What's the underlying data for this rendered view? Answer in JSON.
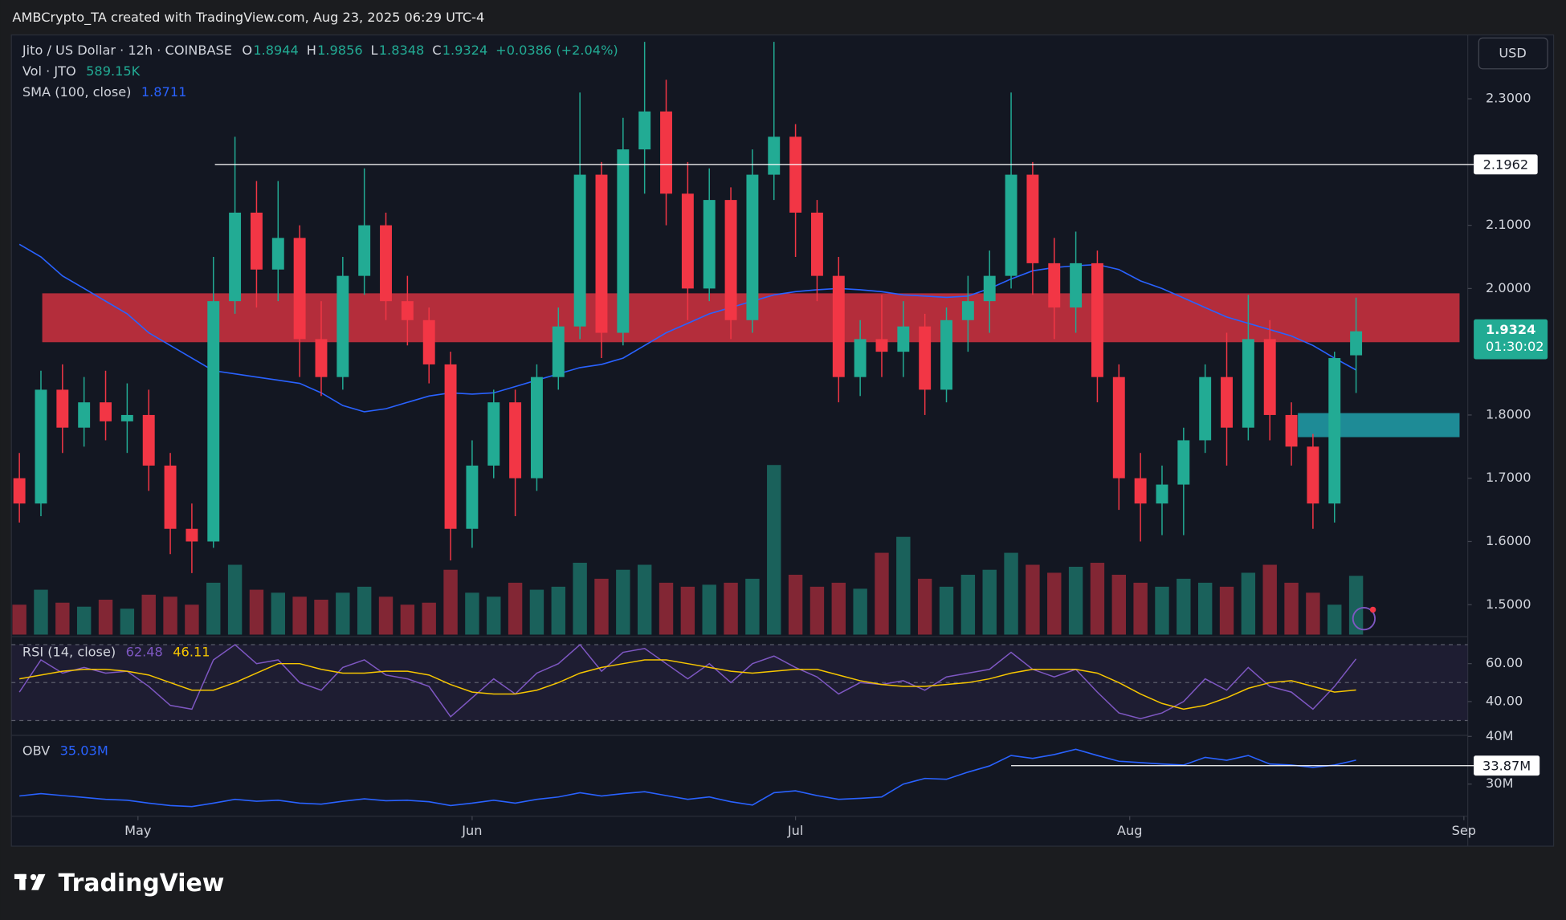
{
  "chart_data": {
    "type": "candlestick",
    "header": "AMBCrypto_TA created with TradingView.com, Aug 23, 2025 06:29 UTC-4",
    "title": "Jito / US Dollar · 12h · COINBASE",
    "legend_keys": [
      "O",
      "H",
      "L",
      "C"
    ],
    "change": "+0.0386 (+2.04%)",
    "currency": "USD",
    "countdown": "01:30:02",
    "brand": "TradingView",
    "colors": {
      "up": "#22ab94",
      "down": "#f23645"
    },
    "open": [
      1.7,
      1.66,
      1.84,
      1.78,
      1.82,
      1.79,
      1.8,
      1.72,
      1.62,
      1.6,
      1.98,
      2.12,
      2.03,
      2.08,
      1.92,
      1.86,
      2.02,
      2.1,
      1.98,
      1.95,
      1.88,
      1.62,
      1.72,
      1.82,
      1.7,
      1.86,
      1.94,
      2.18,
      1.93,
      2.22,
      2.28,
      2.15,
      2.0,
      2.14,
      1.95,
      2.18,
      2.24,
      2.12,
      2.02,
      1.86,
      1.92,
      1.9,
      1.94,
      1.84,
      1.95,
      1.98,
      2.02,
      2.18,
      2.04,
      1.97,
      2.04,
      1.86,
      1.7,
      1.66,
      1.69,
      1.76,
      1.86,
      1.78,
      1.92,
      1.8,
      1.75,
      1.66,
      1.8944
    ],
    "high": [
      1.74,
      1.87,
      1.88,
      1.86,
      1.87,
      1.85,
      1.84,
      1.74,
      1.66,
      2.05,
      2.24,
      2.17,
      2.17,
      2.1,
      1.98,
      2.05,
      2.19,
      2.12,
      2.02,
      1.97,
      1.9,
      1.76,
      1.84,
      1.84,
      1.88,
      1.97,
      2.31,
      2.2,
      2.27,
      2.39,
      2.33,
      2.2,
      2.19,
      2.16,
      2.22,
      2.39,
      2.26,
      2.14,
      2.05,
      1.95,
      1.99,
      1.98,
      1.96,
      1.97,
      2.02,
      2.06,
      2.31,
      2.2,
      2.08,
      2.09,
      2.06,
      1.88,
      1.74,
      1.72,
      1.78,
      1.88,
      1.93,
      1.99,
      1.95,
      1.82,
      1.77,
      1.9,
      1.9856
    ],
    "low": [
      1.63,
      1.64,
      1.74,
      1.75,
      1.76,
      1.74,
      1.68,
      1.58,
      1.55,
      1.59,
      1.96,
      1.97,
      1.98,
      1.86,
      1.83,
      1.84,
      1.99,
      1.95,
      1.91,
      1.85,
      1.57,
      1.59,
      1.7,
      1.64,
      1.68,
      1.84,
      1.92,
      1.89,
      1.91,
      2.15,
      2.1,
      1.95,
      1.98,
      1.92,
      1.93,
      2.14,
      2.05,
      1.98,
      1.82,
      1.83,
      1.86,
      1.86,
      1.8,
      1.82,
      1.9,
      1.93,
      2.0,
      1.99,
      1.92,
      1.93,
      1.82,
      1.65,
      1.6,
      1.61,
      1.61,
      1.74,
      1.72,
      1.76,
      1.76,
      1.72,
      1.62,
      1.63,
      1.8348
    ],
    "close": [
      1.66,
      1.84,
      1.78,
      1.82,
      1.79,
      1.8,
      1.72,
      1.62,
      1.6,
      1.98,
      2.12,
      2.03,
      2.08,
      1.92,
      1.86,
      2.02,
      2.1,
      1.98,
      1.95,
      1.88,
      1.62,
      1.72,
      1.82,
      1.7,
      1.86,
      1.94,
      2.18,
      1.93,
      2.22,
      2.28,
      2.15,
      2.0,
      2.14,
      1.95,
      2.18,
      2.24,
      2.12,
      2.02,
      1.86,
      1.92,
      1.9,
      1.94,
      1.84,
      1.95,
      1.98,
      2.02,
      2.18,
      2.04,
      1.97,
      2.04,
      1.86,
      1.7,
      1.66,
      1.69,
      1.76,
      1.86,
      1.78,
      1.92,
      1.8,
      1.75,
      1.66,
      1.89,
      1.9324
    ],
    "ylim": [
      1.4527,
      2.401
    ],
    "yticks": [
      {
        "value": 2.3,
        "label": "2.3000"
      },
      {
        "value": 2.1,
        "label": "2.1000"
      },
      {
        "value": 2.0,
        "label": "2.0000"
      },
      {
        "value": 1.8,
        "label": "1.8000"
      },
      {
        "value": 1.7,
        "label": "1.7000"
      },
      {
        "value": 1.6,
        "label": "1.6000"
      },
      {
        "value": 1.5,
        "label": "1.5000"
      }
    ],
    "xlim": [
      -0.37,
      67.18
    ],
    "xticks": [
      {
        "value": 5.5,
        "label": "May"
      },
      {
        "value": 21,
        "label": "Jun"
      },
      {
        "value": 36,
        "label": "Jul"
      },
      {
        "value": 51.5,
        "label": "Aug"
      },
      {
        "value": 67,
        "label": "Sep"
      }
    ],
    "zones": [
      {
        "from": 1.9151,
        "to": 1.9924,
        "x0": 1.06,
        "x1": 66.8,
        "color": "#f23645"
      },
      {
        "from": 1.765,
        "to": 1.803,
        "x0": 59.3,
        "x1": 66.8,
        "color": "#22b8c4"
      }
    ],
    "levels": [
      {
        "value": 2.1962,
        "x0": 9.07
      }
    ],
    "volume": {
      "name": "Vol · JTO",
      "ylim": [
        0,
        2000
      ],
      "values": [
        300,
        450,
        320,
        280,
        350,
        260,
        400,
        380,
        300,
        520,
        700,
        450,
        420,
        380,
        350,
        420,
        480,
        380,
        300,
        320,
        650,
        420,
        380,
        520,
        450,
        480,
        720,
        560,
        650,
        700,
        520,
        480,
        500,
        520,
        560,
        1700,
        600,
        480,
        520,
        460,
        820,
        980,
        560,
        480,
        600,
        650,
        820,
        700,
        620,
        680,
        720,
        600,
        520,
        480,
        560,
        520,
        480,
        620,
        700,
        520,
        420,
        300,
        589.15
      ],
      "value_labels": [
        null,
        null,
        null,
        null,
        null,
        null,
        null,
        null,
        null,
        null,
        null,
        null,
        null,
        null,
        null,
        null,
        null,
        null,
        null,
        null,
        null,
        null,
        null,
        null,
        null,
        null,
        null,
        null,
        null,
        null,
        null,
        null,
        null,
        null,
        null,
        null,
        null,
        null,
        null,
        null,
        null,
        null,
        null,
        null,
        null,
        null,
        null,
        null,
        null,
        null,
        null,
        null,
        null,
        null,
        null,
        null,
        null,
        null,
        null,
        null,
        null,
        null,
        "589.15K"
      ]
    },
    "sma": {
      "name": "SMA (100, close)",
      "color": "#2962ff",
      "values": [
        2.07,
        2.05,
        2.02,
        2.0,
        1.98,
        1.96,
        1.93,
        1.91,
        1.89,
        1.87,
        1.865,
        1.86,
        1.855,
        1.85,
        1.835,
        1.815,
        1.805,
        1.81,
        1.82,
        1.83,
        1.835,
        1.833,
        1.835,
        1.845,
        1.855,
        1.865,
        1.875,
        1.88,
        1.89,
        1.91,
        1.93,
        1.945,
        1.96,
        1.97,
        1.98,
        1.99,
        1.995,
        1.998,
        2.0,
        1.998,
        1.995,
        1.99,
        1.988,
        1.986,
        1.988,
        2.0,
        2.015,
        2.028,
        2.033,
        2.036,
        2.038,
        2.03,
        2.012,
        2.0,
        1.985,
        1.97,
        1.955,
        1.945,
        1.935,
        1.925,
        1.91,
        1.89,
        1.8711
      ]
    },
    "rsi": {
      "name": "RSI (14, close)",
      "color": "#7e57c2",
      "ylim": [
        23.2,
        73.2
      ],
      "bands": [
        70,
        50,
        30
      ],
      "yticks": [
        {
          "value": 60,
          "label": "60.00"
        },
        {
          "value": 40,
          "label": "40.00"
        }
      ],
      "values": [
        45,
        62,
        55,
        58,
        55,
        56,
        48,
        38,
        36,
        62,
        70,
        60,
        62,
        50,
        46,
        58,
        62,
        54,
        52,
        48,
        32,
        42,
        52,
        44,
        55,
        60,
        70,
        56,
        66,
        68,
        60,
        52,
        60,
        50,
        60,
        64,
        58,
        53,
        44,
        50,
        49,
        51,
        46,
        53,
        55,
        57,
        66,
        57,
        53,
        57,
        45,
        34,
        31,
        34,
        40,
        52,
        46,
        58,
        48,
        45,
        36,
        48,
        62.48
      ],
      "ma": {
        "color": "#f7c600",
        "values": [
          52,
          54,
          56,
          57,
          57,
          56,
          54,
          50,
          46,
          46,
          50,
          55,
          60,
          60,
          57,
          55,
          55,
          56,
          56,
          54,
          49,
          45,
          44,
          44,
          46,
          50,
          55,
          58,
          60,
          62,
          62,
          60,
          58,
          56,
          55,
          56,
          57,
          57,
          54,
          51,
          49,
          48,
          48,
          49,
          50,
          52,
          55,
          57,
          57,
          57,
          55,
          50,
          44,
          39,
          36,
          38,
          42,
          47,
          50,
          51,
          48,
          45,
          46.11
        ]
      }
    },
    "obv": {
      "name": "OBV",
      "color": "#2962ff",
      "ylim": [
        23.26,
        40
      ],
      "yticks": [
        {
          "value": 40,
          "label": "40M"
        },
        {
          "value": 30,
          "label": "30M"
        }
      ],
      "level": {
        "value": 33.87,
        "label": "33.87M",
        "x0": 46.0
      },
      "values": [
        27.5,
        28.0,
        27.6,
        27.2,
        26.8,
        26.6,
        26.0,
        25.5,
        25.3,
        26.0,
        26.8,
        26.4,
        26.6,
        26.0,
        25.8,
        26.4,
        26.9,
        26.5,
        26.6,
        26.3,
        25.5,
        26.0,
        26.6,
        26.0,
        26.8,
        27.3,
        28.2,
        27.5,
        28.0,
        28.4,
        27.6,
        26.8,
        27.3,
        26.3,
        25.6,
        28.2,
        28.6,
        27.6,
        26.8,
        27.0,
        27.3,
        30.0,
        31.2,
        31.0,
        32.5,
        33.8,
        36.0,
        35.4,
        36.2,
        37.3,
        36.0,
        34.8,
        34.5,
        34.2,
        34.0,
        35.6,
        35.0,
        36.0,
        34.2,
        34.0,
        33.5,
        34.0,
        35.03
      ],
      "value_labels": [
        null,
        null,
        null,
        null,
        null,
        null,
        null,
        null,
        null,
        null,
        null,
        null,
        null,
        null,
        null,
        null,
        null,
        null,
        null,
        null,
        null,
        null,
        null,
        null,
        null,
        null,
        null,
        null,
        null,
        null,
        null,
        null,
        null,
        null,
        null,
        null,
        null,
        null,
        null,
        null,
        null,
        null,
        null,
        null,
        null,
        null,
        null,
        null,
        null,
        null,
        null,
        null,
        null,
        null,
        null,
        null,
        null,
        null,
        null,
        null,
        null,
        null,
        "35.03M"
      ]
    }
  }
}
